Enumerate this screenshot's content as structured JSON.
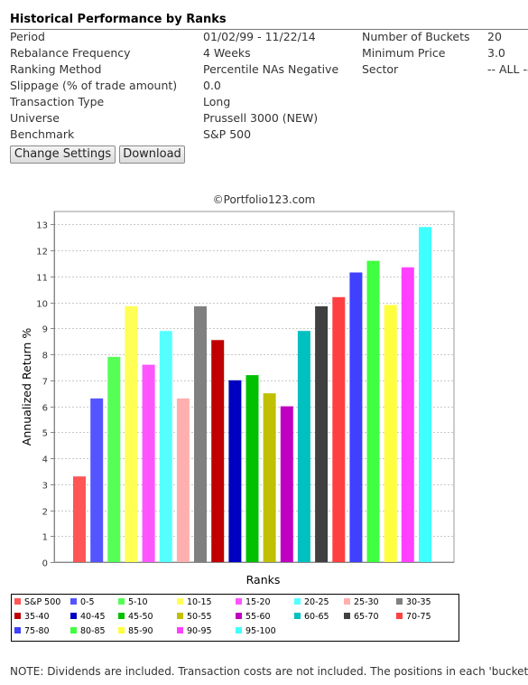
{
  "header": {
    "title": "Historical Performance by Ranks"
  },
  "settings": {
    "left": [
      {
        "label": "Period",
        "value": "01/02/99 - 11/22/14"
      },
      {
        "label": "Rebalance Frequency",
        "value": "4 Weeks"
      },
      {
        "label": "Ranking Method",
        "value": "Percentile NAs Negative"
      },
      {
        "label": "Slippage (% of trade amount)",
        "value": "0.0"
      },
      {
        "label": "Transaction Type",
        "value": "Long"
      },
      {
        "label": "Universe",
        "value": "Prussell 3000 (NEW)"
      },
      {
        "label": "Benchmark",
        "value": "S&P 500"
      }
    ],
    "right": [
      {
        "label": "Number of Buckets",
        "value": "20"
      },
      {
        "label": "Minimum Price",
        "value": "3.0"
      },
      {
        "label": "Sector",
        "value": "-- ALL --"
      }
    ]
  },
  "buttons": {
    "change_settings": "Change Settings",
    "download": "Download"
  },
  "copyright": "©Portfolio123.com",
  "chart_data": {
    "type": "bar",
    "title": "",
    "xlabel": "Ranks",
    "ylabel": "Annualized Return %",
    "ylim": [
      0,
      13.5
    ],
    "yticks": [
      0,
      1,
      2,
      3,
      4,
      5,
      6,
      7,
      8,
      9,
      10,
      11,
      12,
      13
    ],
    "grid": true,
    "legend": "bottom",
    "categories": [
      "S&P 500",
      "0-5",
      "5-10",
      "10-15",
      "15-20",
      "20-25",
      "25-30",
      "30-35",
      "35-40",
      "40-45",
      "45-50",
      "50-55",
      "55-60",
      "60-65",
      "65-70",
      "70-75",
      "75-80",
      "80-85",
      "85-90",
      "90-95",
      "95-100"
    ],
    "values": [
      3.3,
      6.3,
      7.9,
      9.85,
      7.6,
      8.9,
      6.3,
      9.85,
      8.55,
      7.0,
      7.2,
      6.5,
      6.0,
      8.9,
      9.85,
      10.2,
      11.15,
      11.6,
      9.9,
      11.35,
      12.9
    ],
    "colors": [
      "#ff5555",
      "#5555ff",
      "#55ff55",
      "#ffff55",
      "#ff55ff",
      "#55ffff",
      "#ffafaf",
      "#808080",
      "#c00000",
      "#0000c0",
      "#00c000",
      "#c0c000",
      "#c000c0",
      "#00c0c0",
      "#404040",
      "#ff4040",
      "#4040ff",
      "#40ff40",
      "#ffff40",
      "#ff40ff",
      "#40ffff"
    ]
  },
  "note": "NOTE: Dividends are included. Transaction costs are not included. The positions in each 'bucket'"
}
